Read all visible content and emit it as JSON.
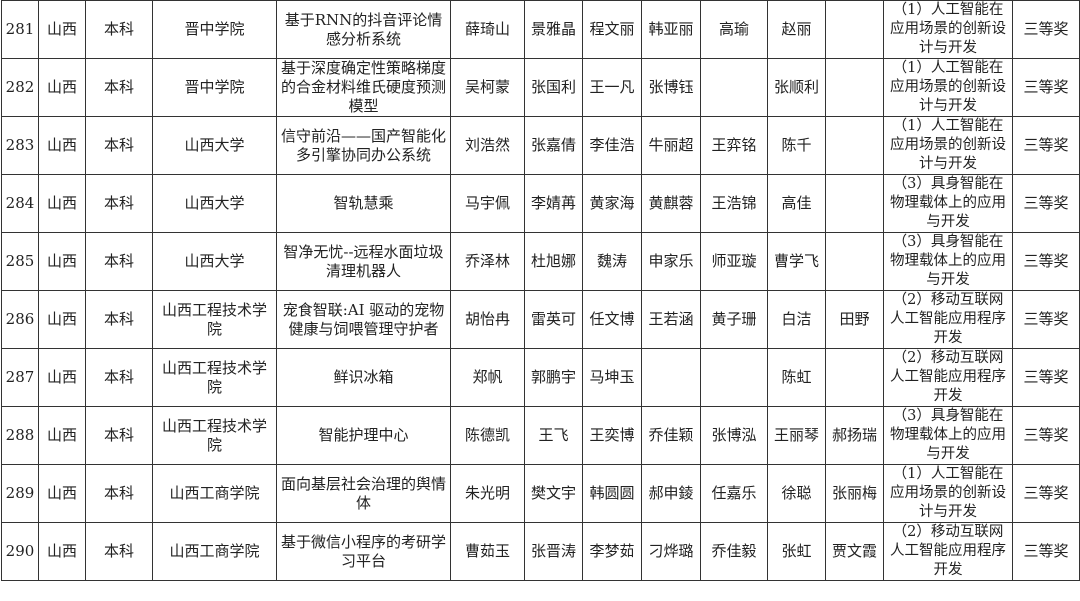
{
  "rows": [
    {
      "no": "281",
      "province": "山西",
      "level": "本科",
      "school": "晋中学院",
      "project": "基于RNN的抖音评论情感分析系统",
      "m1": "薛琦山",
      "m2": "景雅晶",
      "m3": "程文丽",
      "m4": "韩亚丽",
      "m5": "高瑜",
      "t1": "赵丽",
      "t2": "",
      "category": "（1）人工智能在应用场景的创新设计与开发",
      "award": "三等奖"
    },
    {
      "no": "282",
      "province": "山西",
      "level": "本科",
      "school": "晋中学院",
      "project": "基于深度确定性策略梯度的合金材料维氏硬度预测模型",
      "m1": "吴柯蒙",
      "m2": "张国利",
      "m3": "王一凡",
      "m4": "张博钰",
      "m5": "",
      "t1": "张顺利",
      "t2": "",
      "category": "（1）人工智能在应用场景的创新设计与开发",
      "award": "三等奖"
    },
    {
      "no": "283",
      "province": "山西",
      "level": "本科",
      "school": "山西大学",
      "project": "信守前沿——国产智能化多引擎协同办公系统",
      "m1": "刘浩然",
      "m2": "张嘉倩",
      "m3": "李佳浩",
      "m4": "牛丽超",
      "m5": "王弈铭",
      "t1": "陈千",
      "t2": "",
      "category": "（1）人工智能在应用场景的创新设计与开发",
      "award": "三等奖"
    },
    {
      "no": "284",
      "province": "山西",
      "level": "本科",
      "school": "山西大学",
      "project": "智轨慧乘",
      "m1": "马宇佩",
      "m2": "李婧苒",
      "m3": "黄家海",
      "m4": "黄麒蓉",
      "m5": "王浩锦",
      "t1": "高佳",
      "t2": "",
      "category": "（3）具身智能在物理载体上的应用与开发",
      "award": "三等奖"
    },
    {
      "no": "285",
      "province": "山西",
      "level": "本科",
      "school": "山西大学",
      "project": "智净无忧--远程水面垃圾清理机器人",
      "m1": "乔泽林",
      "m2": "杜旭娜",
      "m3": "魏涛",
      "m4": "申家乐",
      "m5": "师亚璇",
      "t1": "曹学飞",
      "t2": "",
      "category": "（3）具身智能在物理载体上的应用与开发",
      "award": "三等奖"
    },
    {
      "no": "286",
      "province": "山西",
      "level": "本科",
      "school": "山西工程技术学院",
      "project": "宠食智联:AI 驱动的宠物健康与饲喂管理守护者",
      "m1": "胡怡冉",
      "m2": "雷英可",
      "m3": "任文博",
      "m4": "王若涵",
      "m5": "黄子珊",
      "t1": "白洁",
      "t2": "田野",
      "category": "（2）移动互联网人工智能应用程序开发",
      "award": "三等奖"
    },
    {
      "no": "287",
      "province": "山西",
      "level": "本科",
      "school": "山西工程技术学院",
      "project": "鲜识冰箱",
      "m1": "郑帆",
      "m2": "郭鹏宇",
      "m3": "马坤玉",
      "m4": "",
      "m5": "",
      "t1": "陈虹",
      "t2": "",
      "category": "（2）移动互联网人工智能应用程序开发",
      "award": "三等奖"
    },
    {
      "no": "288",
      "province": "山西",
      "level": "本科",
      "school": "山西工程技术学院",
      "project": "智能护理中心",
      "m1": "陈德凯",
      "m2": "王飞",
      "m3": "王奕博",
      "m4": "乔佳颖",
      "m5": "张博泓",
      "t1": "王丽琴",
      "t2": "郝扬瑞",
      "category": "（3）具身智能在物理载体上的应用与开发",
      "award": "三等奖"
    },
    {
      "no": "289",
      "province": "山西",
      "level": "本科",
      "school": "山西工商学院",
      "project": "面向基层社会治理的舆情体",
      "m1": "朱光明",
      "m2": "樊文宇",
      "m3": "韩圆圆",
      "m4": "郝申錂",
      "m5": "任嘉乐",
      "t1": "徐聪",
      "t2": "张丽梅",
      "category": "（1）人工智能在应用场景的创新设计与开发",
      "award": "三等奖"
    },
    {
      "no": "290",
      "province": "山西",
      "level": "本科",
      "school": "山西工商学院",
      "project": "基于微信小程序的考研学习平台",
      "m1": "曹茹玉",
      "m2": "张晋涛",
      "m3": "李梦茹",
      "m4": "刁烨璐",
      "m5": "乔佳毅",
      "t1": "张虹",
      "t2": "贾文霞",
      "category": "（2）移动互联网人工智能应用程序开发",
      "award": "三等奖"
    }
  ]
}
